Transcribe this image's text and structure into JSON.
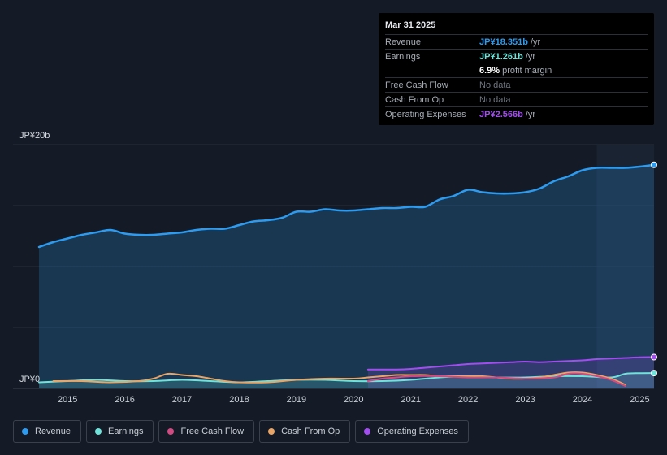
{
  "tooltip": {
    "date": "Mar 31 2025",
    "rows": [
      {
        "label": "Revenue",
        "value": "JP¥18.351b",
        "unit": "/yr",
        "color": "#2d9bf0"
      },
      {
        "label": "Earnings",
        "value": "JP¥1.261b",
        "unit": "/yr",
        "color": "#6fe3d9"
      },
      {
        "label": "",
        "value": "6.9%",
        "unit": "profit margin",
        "color": "#ffffff"
      },
      {
        "label": "Free Cash Flow",
        "value": "No data",
        "color": "#6f7680"
      },
      {
        "label": "Cash From Op",
        "value": "No data",
        "color": "#6f7680"
      },
      {
        "label": "Operating Expenses",
        "value": "JP¥2.566b",
        "unit": "/yr",
        "color": "#a24df0"
      }
    ]
  },
  "legend": [
    {
      "label": "Revenue",
      "color": "#2d9bf0"
    },
    {
      "label": "Earnings",
      "color": "#6fe3d9"
    },
    {
      "label": "Free Cash Flow",
      "color": "#d14b82"
    },
    {
      "label": "Cash From Op",
      "color": "#e9a566"
    },
    {
      "label": "Operating Expenses",
      "color": "#a24df0"
    }
  ],
  "chart_data": {
    "type": "line",
    "title": "",
    "y_axis_labels": [
      "JP¥20b",
      "JP¥0"
    ],
    "ylim": [
      0,
      20
    ],
    "xlim": [
      2014.5,
      2025.25
    ],
    "x_ticks": [
      "2015",
      "2016",
      "2017",
      "2018",
      "2019",
      "2020",
      "2021",
      "2022",
      "2023",
      "2024",
      "2025"
    ],
    "x_tick_values": [
      2015,
      2016,
      2017,
      2018,
      2019,
      2020,
      2021,
      2022,
      2023,
      2024,
      2025
    ],
    "highlight_from": 2024.25,
    "series": [
      {
        "name": "Revenue",
        "color": "#2d9bf0",
        "fill": true,
        "x": [
          2014.5,
          2014.75,
          2015,
          2015.25,
          2015.5,
          2015.75,
          2016,
          2016.25,
          2016.5,
          2016.75,
          2017,
          2017.25,
          2017.5,
          2017.75,
          2018,
          2018.25,
          2018.5,
          2018.75,
          2019,
          2019.25,
          2019.5,
          2019.75,
          2020,
          2020.25,
          2020.5,
          2020.75,
          2021,
          2021.25,
          2021.5,
          2021.75,
          2022,
          2022.25,
          2022.5,
          2022.75,
          2023,
          2023.25,
          2023.5,
          2023.75,
          2024,
          2024.25,
          2024.5,
          2024.75,
          2025,
          2025.25
        ],
        "values": [
          11.6,
          12.0,
          12.3,
          12.6,
          12.8,
          13.0,
          12.7,
          12.6,
          12.6,
          12.7,
          12.8,
          13.0,
          13.1,
          13.1,
          13.4,
          13.7,
          13.8,
          14.0,
          14.5,
          14.5,
          14.7,
          14.6,
          14.6,
          14.7,
          14.8,
          14.8,
          14.9,
          14.9,
          15.5,
          15.8,
          16.3,
          16.1,
          16.0,
          16.0,
          16.1,
          16.4,
          17.0,
          17.4,
          17.9,
          18.1,
          18.1,
          18.1,
          18.2,
          18.35
        ]
      },
      {
        "name": "Earnings",
        "color": "#6fe3d9",
        "fill": true,
        "x": [
          2014.5,
          2015,
          2015.5,
          2016,
          2016.5,
          2017,
          2017.5,
          2018,
          2018.5,
          2019,
          2019.5,
          2020,
          2020.5,
          2021,
          2021.5,
          2022,
          2022.5,
          2023,
          2023.5,
          2024,
          2024.5,
          2024.75,
          2025,
          2025.25
        ],
        "values": [
          0.5,
          0.6,
          0.7,
          0.6,
          0.6,
          0.7,
          0.6,
          0.5,
          0.6,
          0.7,
          0.7,
          0.6,
          0.6,
          0.7,
          0.9,
          1.0,
          0.9,
          0.9,
          1.0,
          1.0,
          0.9,
          1.2,
          1.25,
          1.26
        ]
      },
      {
        "name": "Cash From Op",
        "color": "#e9a566",
        "fill": false,
        "x": [
          2014.75,
          2015.25,
          2015.75,
          2016.25,
          2016.5,
          2016.75,
          2017,
          2017.25,
          2017.5,
          2017.75,
          2018,
          2018.5,
          2019,
          2019.5,
          2020,
          2020.25,
          2020.5,
          2020.75,
          2021,
          2021.25,
          2021.5,
          2021.75,
          2022,
          2022.25,
          2022.5,
          2022.75,
          2023,
          2023.25,
          2023.5,
          2023.75,
          2024,
          2024.25,
          2024.5,
          2024.75
        ],
        "values": [
          0.6,
          0.6,
          0.5,
          0.6,
          0.8,
          1.2,
          1.1,
          1.0,
          0.8,
          0.6,
          0.5,
          0.5,
          0.7,
          0.8,
          0.8,
          0.9,
          1.0,
          1.1,
          1.1,
          1.1,
          1.0,
          1.0,
          1.0,
          1.0,
          0.9,
          0.8,
          0.8,
          0.9,
          1.1,
          1.3,
          1.3,
          1.1,
          0.8,
          0.3
        ]
      },
      {
        "name": "Free Cash Flow",
        "color": "#d14b82",
        "fill": false,
        "x": [
          2020.25,
          2020.5,
          2020.75,
          2021,
          2021.5,
          2022,
          2022.5,
          2023,
          2023.5,
          2023.75,
          2024,
          2024.25,
          2024.5,
          2024.75
        ],
        "values": [
          0.6,
          0.8,
          0.9,
          1.0,
          1.0,
          0.9,
          0.9,
          0.8,
          0.9,
          1.2,
          1.2,
          1.0,
          0.7,
          0.2
        ]
      },
      {
        "name": "Operating Expenses",
        "color": "#a24df0",
        "fill": true,
        "x": [
          2020.25,
          2020.5,
          2020.75,
          2021,
          2021.25,
          2021.5,
          2021.75,
          2022,
          2022.25,
          2022.5,
          2022.75,
          2023,
          2023.25,
          2023.5,
          2023.75,
          2024,
          2024.25,
          2024.5,
          2024.75,
          2025,
          2025.25
        ],
        "values": [
          1.55,
          1.55,
          1.55,
          1.6,
          1.7,
          1.8,
          1.9,
          2.0,
          2.05,
          2.1,
          2.15,
          2.2,
          2.15,
          2.2,
          2.25,
          2.3,
          2.4,
          2.45,
          2.5,
          2.55,
          2.566
        ]
      }
    ]
  }
}
